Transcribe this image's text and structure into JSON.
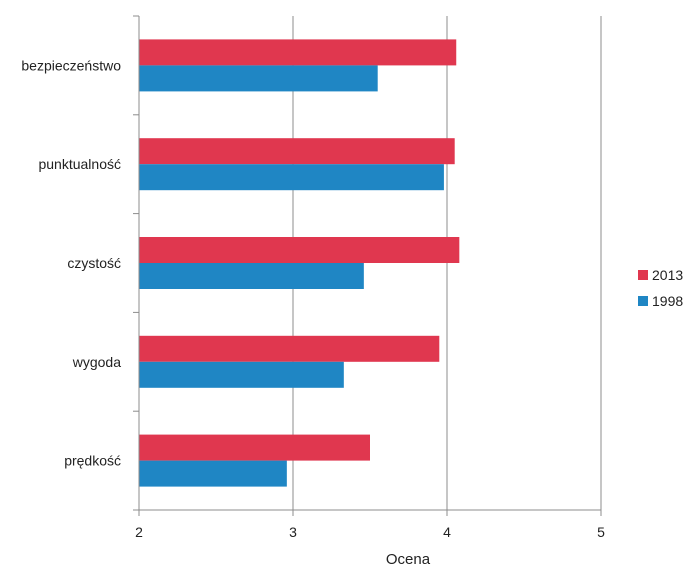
{
  "chart_data": {
    "type": "bar",
    "orientation": "horizontal",
    "categories": [
      "bezpieczeństwo",
      "punktualność",
      "czystość",
      "wygoda",
      "prędkość"
    ],
    "series": [
      {
        "name": "2013",
        "color": "#e0374f",
        "values": [
          4.06,
          4.05,
          4.08,
          3.95,
          3.5
        ]
      },
      {
        "name": "1998",
        "color": "#1f86c4",
        "values": [
          3.55,
          3.98,
          3.46,
          3.33,
          2.96
        ]
      }
    ],
    "title": "",
    "xlabel": "Ocena",
    "ylabel": "",
    "xlim": [
      2,
      5
    ],
    "xticks": [
      2,
      3,
      4,
      5
    ],
    "grid": true,
    "legend_position": "right"
  }
}
